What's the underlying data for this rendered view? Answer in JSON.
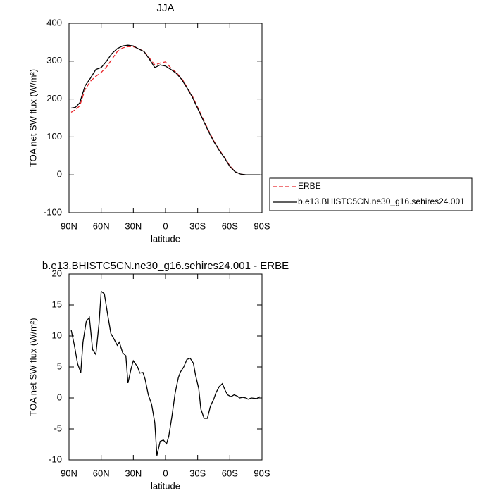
{
  "chart_data": [
    {
      "type": "line",
      "title": "JJA",
      "xlabel": "latitude",
      "ylabel": "TOA net SW flux (W/m²)",
      "xlim": [
        90,
        -90
      ],
      "xticks": [
        {
          "value": 90,
          "label": "90N"
        },
        {
          "value": 60,
          "label": "60N"
        },
        {
          "value": 30,
          "label": "30N"
        },
        0,
        {
          "value": -30,
          "label": "30S"
        },
        {
          "value": -60,
          "label": "60S"
        },
        {
          "value": -90,
          "label": "90S"
        }
      ],
      "ylim": [
        -100,
        400
      ],
      "yticks": [
        -100,
        0,
        100,
        200,
        300,
        400
      ],
      "x": [
        88,
        84,
        80,
        75,
        70,
        65,
        60,
        55,
        50,
        45,
        40,
        35,
        30,
        25,
        20,
        15,
        10,
        5,
        0,
        -5,
        -10,
        -15,
        -20,
        -25,
        -30,
        -35,
        -40,
        -45,
        -50,
        -55,
        -60,
        -65,
        -70,
        -75,
        -80,
        -88
      ],
      "series": [
        {
          "name": "ERBE",
          "color": "#e8262b",
          "line_style": "dashed",
          "values": [
            165,
            172,
            182,
            225,
            247,
            260,
            270,
            285,
            305,
            325,
            335,
            338,
            338,
            333,
            325,
            308,
            290,
            295,
            298,
            282,
            270,
            255,
            232,
            208,
            178,
            148,
            118,
            90,
            67,
            46,
            24,
            8,
            2,
            0,
            0,
            0
          ]
        },
        {
          "name": "b.e13.BHISTC5CN.ne30_g16.sehires24.001",
          "color": "#000000",
          "line_style": "solid",
          "values": [
            176,
            178,
            190,
            235,
            255,
            278,
            283,
            300,
            320,
            333,
            340,
            342,
            340,
            332,
            325,
            305,
            283,
            290,
            287,
            278,
            268,
            252,
            230,
            205,
            175,
            145,
            115,
            88,
            65,
            45,
            22,
            8,
            2,
            0,
            0,
            0
          ]
        }
      ]
    },
    {
      "type": "line",
      "title": "b.e13.BHISTC5CN.ne30_g16.sehires24.001 - ERBE",
      "xlabel": "latitude",
      "ylabel": "TOA net SW flux (W/m²)",
      "xlim": [
        90,
        -90
      ],
      "xticks": [
        {
          "value": 90,
          "label": "90N"
        },
        {
          "value": 60,
          "label": "60N"
        },
        {
          "value": 30,
          "label": "30N"
        },
        0,
        {
          "value": -30,
          "label": "30S"
        },
        {
          "value": -60,
          "label": "60S"
        },
        {
          "value": -90,
          "label": "90S"
        }
      ],
      "ylim": [
        -10,
        20
      ],
      "yticks": [
        -10,
        -5,
        0,
        5,
        10,
        15,
        20
      ],
      "x": [
        88,
        85,
        82,
        79,
        77,
        74,
        71,
        68,
        65,
        62,
        60,
        57,
        54,
        51,
        48,
        45,
        43,
        40,
        37,
        35,
        32,
        30,
        26,
        24,
        21,
        19,
        16,
        13,
        10,
        8,
        5,
        2,
        -1,
        -3,
        -6,
        -9,
        -12,
        -14,
        -17,
        -20,
        -23,
        -26,
        -28,
        -31,
        -33,
        -36,
        -39,
        -42,
        -45,
        -47,
        -50,
        -53,
        -56,
        -58,
        -61,
        -64,
        -67,
        -69,
        -72,
        -75,
        -77,
        -80,
        -85,
        -88
      ],
      "color": "#000000",
      "values": [
        11,
        8.5,
        5.5,
        4.1,
        9,
        12.3,
        13,
        7.8,
        7,
        12,
        17.2,
        16.8,
        13.5,
        10.4,
        9.5,
        8.5,
        9,
        7.3,
        6.8,
        2.4,
        4.8,
        6,
        5,
        4,
        4.1,
        3,
        0.5,
        -1,
        -4,
        -9.3,
        -7,
        -6.8,
        -7.4,
        -6.2,
        -3,
        0.8,
        3.3,
        4.2,
        5,
        6.2,
        6.4,
        5.6,
        3.7,
        1.5,
        -1.8,
        -3.3,
        -3.3,
        -1.3,
        -0.2,
        0.8,
        1.8,
        2.3,
        1.1,
        0.5,
        0.2,
        0.5,
        0.3,
        0,
        0.1,
        0,
        -0.2,
        0,
        -0.1,
        0.2
      ]
    }
  ]
}
